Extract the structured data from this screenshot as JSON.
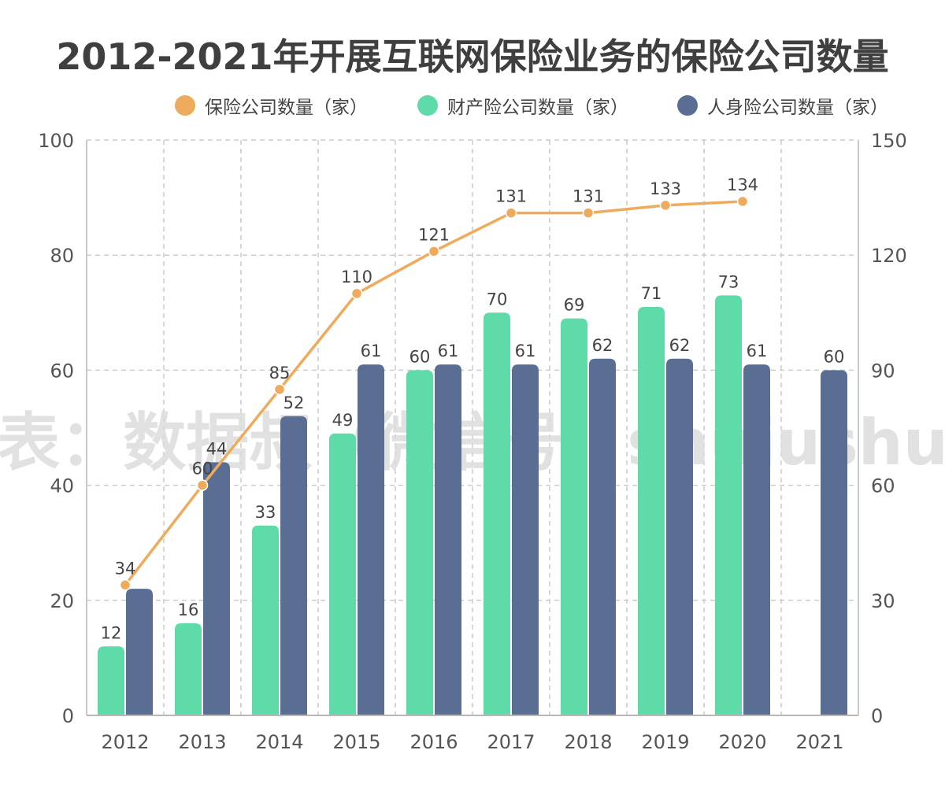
{
  "chart_data": {
    "type": "bar",
    "title": "2012-2021年开展互联网保险业务的保险公司数量",
    "watermark": "制表：数据叔（微信号：shujushu）",
    "categories": [
      "2012",
      "2013",
      "2014",
      "2015",
      "2016",
      "2017",
      "2018",
      "2019",
      "2020",
      "2021"
    ],
    "y_left": {
      "min": 0,
      "max": 100,
      "ticks": [
        "0",
        "20",
        "40",
        "60",
        "80",
        "100"
      ]
    },
    "y_right": {
      "min": 0,
      "max": 150,
      "ticks": [
        "0",
        "30",
        "60",
        "90",
        "120",
        "150"
      ]
    },
    "grid": true,
    "legend_position": "top",
    "series": [
      {
        "name": "保险公司数量（家）",
        "type": "line",
        "axis": "right",
        "color": "#EFAB5D",
        "values": [
          34,
          60,
          85,
          110,
          121,
          131,
          131,
          133,
          134,
          null
        ],
        "labels": [
          "34",
          "60",
          "85",
          "110",
          "121",
          "131",
          "131",
          "133",
          "134",
          ""
        ]
      },
      {
        "name": "财产险公司数量（家）",
        "type": "bar",
        "axis": "left",
        "color": "#5EDBA8",
        "values": [
          12,
          16,
          33,
          49,
          60,
          70,
          69,
          71,
          73,
          null
        ],
        "labels": [
          "12",
          "16",
          "33",
          "49",
          "60",
          "70",
          "69",
          "71",
          "73",
          ""
        ]
      },
      {
        "name": "人身险公司数量（家）",
        "type": "bar",
        "axis": "left",
        "color": "#5A6E94",
        "values": [
          22,
          44,
          52,
          61,
          61,
          61,
          62,
          62,
          61,
          60
        ],
        "labels": [
          "",
          "44",
          "52",
          "61",
          "61",
          "61",
          "62",
          "62",
          "61",
          "60"
        ]
      }
    ]
  }
}
